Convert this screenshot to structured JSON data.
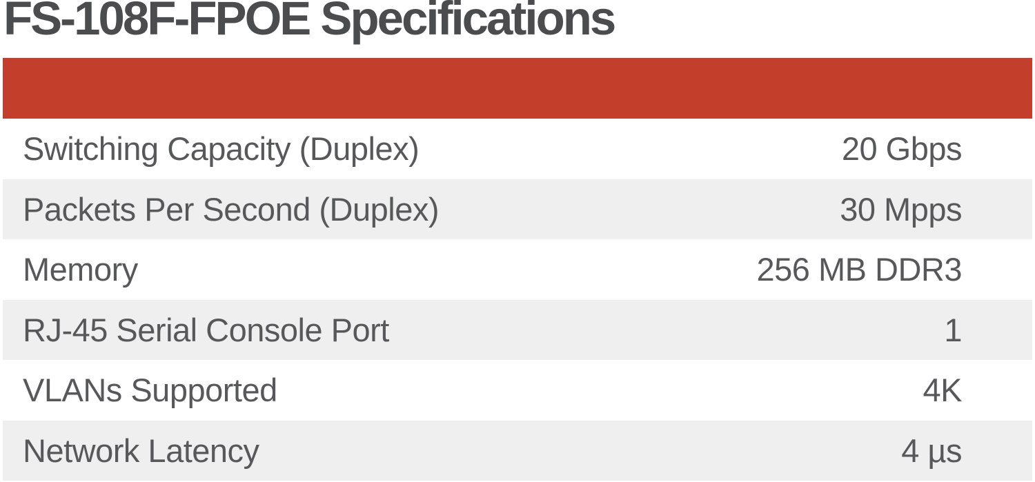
{
  "title": "FS-108F-FPOE Specifications",
  "colors": {
    "accent_red": "#c43e2c",
    "row_alt_gray": "#efefef",
    "title_text": "#4b4c4e",
    "body_text": "#57585a"
  },
  "table": {
    "rows": [
      {
        "label": "Switching Capacity (Duplex)",
        "value": "20 Gbps"
      },
      {
        "label": "Packets Per Second (Duplex)",
        "value": "30 Mpps"
      },
      {
        "label": "Memory",
        "value": "256 MB DDR3"
      },
      {
        "label": "RJ-45 Serial Console Port",
        "value": "1"
      },
      {
        "label": "VLANs Supported",
        "value": "4K"
      },
      {
        "label": "Network Latency",
        "value": "4 µs"
      }
    ]
  }
}
